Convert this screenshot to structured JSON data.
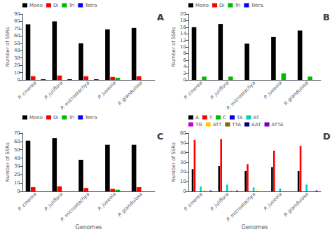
{
  "chart_data": [
    {
      "type": "bar",
      "title": "A",
      "ylabel": "Number of SSRs",
      "categories": [
        "P. cinerea",
        "P. juliflora",
        "P. microstachya",
        "P. juveola",
        "P. glandulosa"
      ],
      "series": [
        {
          "name": "Mono",
          "color": "#000000",
          "values": [
            76,
            80,
            50,
            69,
            71
          ]
        },
        {
          "name": "Di",
          "color": "#ff0000",
          "values": [
            5,
            6,
            5,
            4,
            5
          ]
        },
        {
          "name": "Tri",
          "color": "#00bb00",
          "values": [
            0,
            0,
            0,
            3,
            0
          ]
        },
        {
          "name": "Tetra",
          "color": "#0000ff",
          "values": [
            1,
            1,
            1,
            0,
            0
          ]
        }
      ],
      "ylim": [
        0,
        90
      ],
      "yticks": [
        0,
        10,
        20,
        30,
        40,
        50,
        60,
        70,
        80,
        90
      ],
      "grid": false,
      "legend": "upper left"
    },
    {
      "type": "bar",
      "title": "B",
      "ylabel": "Number of SSRs",
      "categories": [
        "P. cinerea",
        "P. juliflora",
        "P. microstachya",
        "P. juveola",
        "P. glandulosa"
      ],
      "series": [
        {
          "name": "Mono",
          "color": "#000000",
          "values": [
            16,
            17,
            11,
            13,
            15
          ]
        },
        {
          "name": "Di",
          "color": "#ff0000",
          "values": [
            0,
            0,
            0,
            0,
            0
          ]
        },
        {
          "name": "Tri",
          "color": "#00bb00",
          "values": [
            1,
            1,
            0,
            2,
            1
          ]
        },
        {
          "name": "Tetra",
          "color": "#0000ff",
          "values": [
            0,
            0,
            0,
            0,
            0
          ]
        }
      ],
      "ylim": [
        0,
        20
      ],
      "yticks": [
        0,
        2,
        4,
        6,
        8,
        10,
        12,
        14,
        16,
        18,
        20
      ],
      "grid": false,
      "legend": "upper left"
    },
    {
      "type": "bar",
      "title": "C",
      "ylabel": "Number of SSRs",
      "xlabel": "Genomes",
      "categories": [
        "P. cinerea",
        "P. juliflora",
        "P. microstachya",
        "P. juveola",
        "P. glandulosa"
      ],
      "series": [
        {
          "name": "Mono",
          "color": "#000000",
          "values": [
            61,
            64,
            38,
            56,
            56
          ]
        },
        {
          "name": "Di",
          "color": "#ff0000",
          "values": [
            5,
            6,
            4,
            3,
            5
          ]
        },
        {
          "name": "Tri",
          "color": "#00bb00",
          "values": [
            0,
            0,
            0,
            2,
            0
          ]
        },
        {
          "name": "Tetra",
          "color": "#0000ff",
          "values": [
            0,
            0,
            0,
            0,
            0
          ]
        }
      ],
      "ylim": [
        0,
        70
      ],
      "yticks": [
        0,
        10,
        20,
        30,
        40,
        50,
        60,
        70
      ],
      "grid": false,
      "legend": "upper left"
    },
    {
      "type": "bar",
      "title": "D",
      "ylabel": "Number of SSRs",
      "xlabel": "Genomes",
      "categories": [
        "P. cinerea",
        "P. juliflora",
        "P. microstachya",
        "P. juveola",
        "P. glandulosa"
      ],
      "series": [
        {
          "name": "A",
          "color": "#000000",
          "values": [
            23,
            26,
            21,
            25,
            21
          ]
        },
        {
          "name": "T",
          "color": "#ff0000",
          "values": [
            53,
            54,
            28,
            42,
            47
          ]
        },
        {
          "name": "C",
          "color": "#00bb00",
          "values": [
            0,
            0,
            0,
            0,
            0
          ]
        },
        {
          "name": "TA",
          "color": "#0000ee",
          "values": [
            0,
            0,
            0,
            0,
            0
          ]
        },
        {
          "name": "AT",
          "color": "#00cccc",
          "values": [
            5,
            7,
            4,
            3,
            7
          ]
        },
        {
          "name": "TG",
          "color": "#cc00cc",
          "values": [
            0,
            0,
            0,
            0,
            0
          ]
        },
        {
          "name": "ATT",
          "color": "#ffcc00",
          "values": [
            1,
            1,
            1,
            0,
            0
          ]
        },
        {
          "name": "TTA",
          "color": "#886600",
          "values": [
            0,
            0,
            0,
            0,
            0
          ]
        },
        {
          "name": "AAT",
          "color": "#000077",
          "values": [
            0,
            0,
            0,
            0,
            0
          ]
        },
        {
          "name": "ATTA",
          "color": "#7700cc",
          "values": [
            1,
            1,
            0,
            0,
            1
          ]
        }
      ],
      "ylim": [
        0,
        60
      ],
      "yticks": [
        0,
        10,
        20,
        30,
        40,
        50,
        60
      ],
      "grid": false,
      "legend": "upper left"
    }
  ]
}
